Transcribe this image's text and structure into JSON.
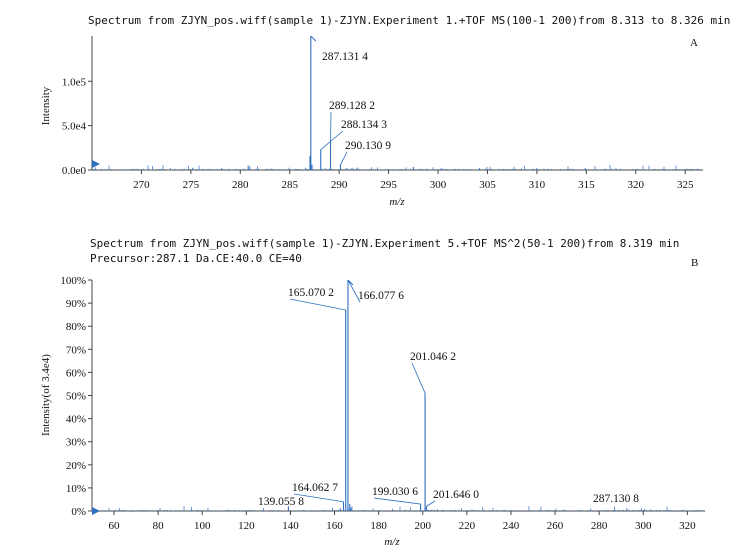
{
  "accent_color": "#2e6fc0",
  "chart_data": [
    {
      "type": "line",
      "panel": "A",
      "title": "Spectrum from ZJYN_pos.wiff(sample 1)-ZJYN.Experiment 1.+TOF MS(100-1 200)from 8.313 to 8.326 min",
      "subtitle": "",
      "xlabel": "m/z",
      "ylabel": "Intensity",
      "xlim": [
        265,
        326.8
      ],
      "ylim": [
        0,
        151000
      ],
      "x_ticks": [
        270,
        275,
        280,
        285,
        290,
        295,
        300,
        305,
        310,
        315,
        320,
        325
      ],
      "y_ticks": [
        0,
        50000,
        100000
      ],
      "y_tick_labels": [
        "0.0e0",
        "5.0e4",
        "1.0e5"
      ],
      "peaks": [
        {
          "x": 287.1314,
          "y": 151000
        },
        {
          "x": 287.05,
          "y": 16000
        },
        {
          "x": 287.25,
          "y": 6000
        },
        {
          "x": 288.1343,
          "y": 23000
        },
        {
          "x": 289.1282,
          "y": 31000
        },
        {
          "x": 290.1309,
          "y": 6000
        },
        {
          "x": 280.8,
          "y": 5000
        },
        {
          "x": 275.2,
          "y": 2500
        },
        {
          "x": 297.5,
          "y": 3500
        },
        {
          "x": 304.2,
          "y": 2000
        },
        {
          "x": 314.9,
          "y": 2000
        },
        {
          "x": 322.7,
          "y": 1200
        }
      ],
      "annotations": [
        {
          "text": "287.131 4",
          "x": 287.1314,
          "y": 151000
        },
        {
          "text": "289.128 2",
          "x": 289.1282,
          "y": 31000
        },
        {
          "text": "288.134 3",
          "x": 288.1343,
          "y": 23000
        },
        {
          "text": "290.130 9",
          "x": 290.1309,
          "y": 6000
        }
      ],
      "grid": false
    },
    {
      "type": "line",
      "panel": "B",
      "title": "Spectrum from ZJYN_pos.wiff(sample 1)-ZJYN.Experiment 5.+TOF MS^2(50-1 200)from 8.319 min",
      "subtitle": "Precursor:287.1 Da.CE:40.0 CE=40",
      "xlabel": "m/z",
      "ylabel": "Intensity(of 3.4e4)",
      "xlim": [
        50,
        328
      ],
      "ylim": [
        0,
        100
      ],
      "x_ticks": [
        60,
        80,
        100,
        120,
        140,
        160,
        180,
        200,
        220,
        240,
        260,
        280,
        300,
        320
      ],
      "y_ticks": [
        0,
        10,
        20,
        30,
        40,
        50,
        60,
        70,
        80,
        90,
        100
      ],
      "y_tick_labels": [
        "0%",
        "10%",
        "20%",
        "30%",
        "40%",
        "50%",
        "60%",
        "70%",
        "80%",
        "90%",
        "100%"
      ],
      "peaks": [
        {
          "x": 166.0776,
          "y": 100
        },
        {
          "x": 165.0702,
          "y": 87
        },
        {
          "x": 201.0462,
          "y": 51
        },
        {
          "x": 164.0627,
          "y": 4
        },
        {
          "x": 199.0306,
          "y": 3
        },
        {
          "x": 201.646,
          "y": 2
        },
        {
          "x": 139.0558,
          "y": 2
        },
        {
          "x": 287.1308,
          "y": 0.5
        },
        {
          "x": 162.6,
          "y": 1.2
        },
        {
          "x": 166.9,
          "y": 3
        },
        {
          "x": 167.4,
          "y": 1.5
        }
      ],
      "annotations": [
        {
          "text": "165.070 2",
          "x": 165.0702,
          "y": 87
        },
        {
          "text": "166.077 6",
          "x": 166.0776,
          "y": 100
        },
        {
          "text": "201.046 2",
          "x": 201.0462,
          "y": 51
        },
        {
          "text": "164.062 7",
          "x": 164.0627,
          "y": 4
        },
        {
          "text": "199.030 6",
          "x": 199.0306,
          "y": 3
        },
        {
          "text": "201.646 0",
          "x": 201.646,
          "y": 2
        },
        {
          "text": "139.055 8",
          "x": 139.0558,
          "y": 2
        },
        {
          "text": "287.130 8",
          "x": 287.1308,
          "y": 0.5
        }
      ],
      "grid": false
    }
  ]
}
